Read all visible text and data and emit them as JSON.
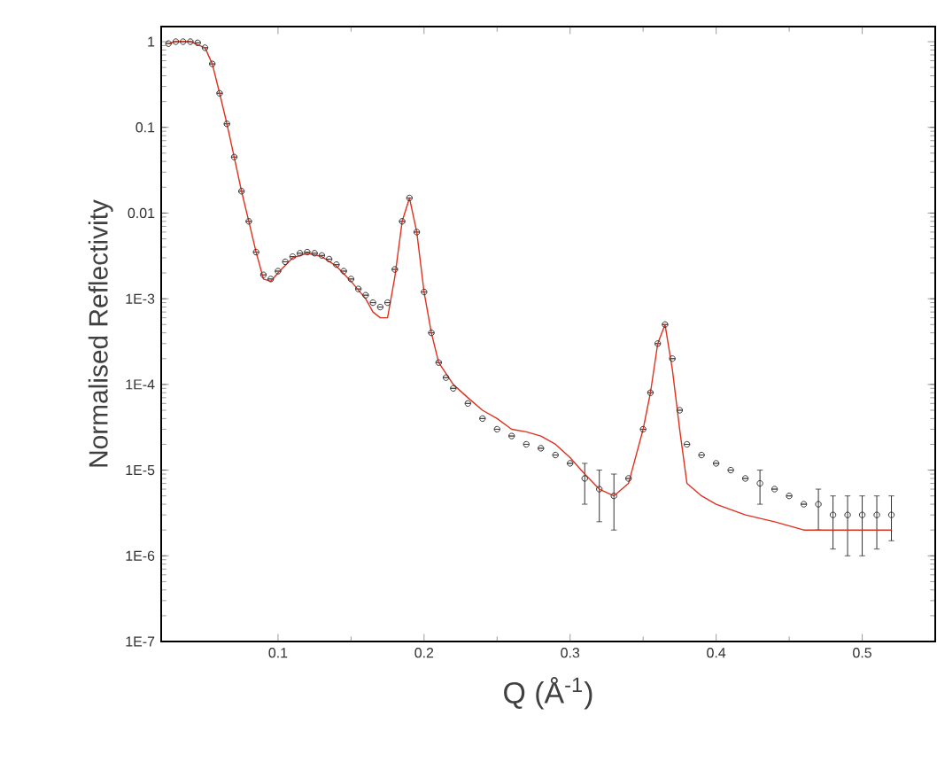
{
  "chart_data": {
    "type": "line",
    "xlabel": "Q (Å$^{-1}$)",
    "ylabel": "Normalised Reflectivity",
    "log": "y",
    "xlim": [
      0.02,
      0.55
    ],
    "xticks": [
      0.1,
      0.2,
      0.3,
      0.4,
      0.5
    ],
    "ylim": [
      1e-07,
      1.5
    ],
    "yticks": [
      {
        "value": 1e-07,
        "label": "1E-7"
      },
      {
        "value": 1e-06,
        "label": "1E-6"
      },
      {
        "value": 1e-05,
        "label": "1E-5"
      },
      {
        "value": 0.0001,
        "label": "1E-4"
      },
      {
        "value": 0.001,
        "label": "1E-3"
      },
      {
        "value": 0.01,
        "label": "0.01"
      },
      {
        "value": 0.1,
        "label": "0.1"
      },
      {
        "value": 1,
        "label": "1"
      }
    ],
    "grid": false,
    "series": [
      {
        "type": "scatter",
        "marker": "circle",
        "color": "#333333",
        "x": [
          0.025,
          0.03,
          0.035,
          0.04,
          0.045,
          0.05,
          0.055,
          0.06,
          0.065,
          0.07,
          0.075,
          0.08,
          0.085,
          0.09,
          0.095,
          0.1,
          0.105,
          0.11,
          0.115,
          0.12,
          0.125,
          0.13,
          0.135,
          0.14,
          0.145,
          0.15,
          0.155,
          0.16,
          0.165,
          0.17,
          0.175,
          0.18,
          0.185,
          0.19,
          0.195,
          0.2,
          0.205,
          0.21,
          0.215,
          0.22,
          0.23,
          0.24,
          0.25,
          0.26,
          0.27,
          0.28,
          0.29,
          0.3,
          0.31,
          0.32,
          0.33,
          0.34,
          0.35,
          0.355,
          0.36,
          0.365,
          0.37,
          0.375,
          0.38,
          0.39,
          0.4,
          0.41,
          0.42,
          0.43,
          0.44,
          0.45,
          0.46,
          0.47,
          0.48,
          0.49,
          0.5,
          0.51,
          0.52
        ],
        "values": [
          0.95,
          1.0,
          1.0,
          1.0,
          0.97,
          0.85,
          0.55,
          0.25,
          0.11,
          0.045,
          0.018,
          0.008,
          0.0035,
          0.0019,
          0.0017,
          0.0021,
          0.0027,
          0.0031,
          0.0034,
          0.0035,
          0.0034,
          0.0032,
          0.0029,
          0.0025,
          0.0021,
          0.0017,
          0.0013,
          0.0011,
          0.0009,
          0.0008,
          0.0009,
          0.0022,
          0.008,
          0.015,
          0.006,
          0.0012,
          0.0004,
          0.00018,
          0.00012,
          9e-05,
          6e-05,
          4e-05,
          3e-05,
          2.5e-05,
          2e-05,
          1.8e-05,
          1.5e-05,
          1.2e-05,
          8e-06,
          6e-06,
          5e-06,
          8e-06,
          3e-05,
          8e-05,
          0.0003,
          0.0005,
          0.0002,
          5e-05,
          2e-05,
          1.5e-05,
          1.2e-05,
          1e-05,
          8e-06,
          7e-06,
          6e-06,
          5e-06,
          4e-06,
          4e-06,
          3e-06,
          3e-06,
          3e-06,
          3e-06,
          3e-06
        ],
        "errors": [
          null,
          null,
          null,
          null,
          null,
          null,
          null,
          null,
          null,
          null,
          null,
          null,
          null,
          null,
          null,
          null,
          null,
          null,
          null,
          null,
          null,
          null,
          null,
          null,
          null,
          null,
          null,
          null,
          null,
          null,
          null,
          null,
          null,
          null,
          null,
          null,
          null,
          null,
          null,
          null,
          null,
          null,
          null,
          null,
          null,
          null,
          null,
          null,
          [
            4e-06,
            1.2e-05
          ],
          [
            2.5e-06,
            1e-05
          ],
          [
            2e-06,
            9e-06
          ],
          null,
          null,
          null,
          null,
          null,
          null,
          null,
          null,
          null,
          null,
          null,
          null,
          [
            4e-06,
            1e-05
          ],
          null,
          null,
          null,
          [
            2e-06,
            6e-06
          ],
          [
            1.2e-06,
            5e-06
          ],
          [
            1e-06,
            5e-06
          ],
          [
            1e-06,
            5e-06
          ],
          [
            1.2e-06,
            5e-06
          ],
          [
            1.5e-06,
            5e-06
          ]
        ]
      },
      {
        "color": "#e0301e",
        "x": [
          0.025,
          0.03,
          0.04,
          0.05,
          0.055,
          0.06,
          0.065,
          0.07,
          0.075,
          0.08,
          0.085,
          0.09,
          0.095,
          0.1,
          0.11,
          0.12,
          0.13,
          0.14,
          0.15,
          0.16,
          0.165,
          0.17,
          0.175,
          0.18,
          0.185,
          0.19,
          0.195,
          0.2,
          0.205,
          0.21,
          0.22,
          0.23,
          0.24,
          0.25,
          0.26,
          0.27,
          0.28,
          0.29,
          0.3,
          0.31,
          0.32,
          0.33,
          0.34,
          0.35,
          0.355,
          0.36,
          0.365,
          0.37,
          0.375,
          0.38,
          0.39,
          0.4,
          0.42,
          0.44,
          0.46,
          0.48,
          0.5,
          0.52
        ],
        "values": [
          0.95,
          1.0,
          1.0,
          0.85,
          0.55,
          0.25,
          0.11,
          0.045,
          0.018,
          0.008,
          0.0035,
          0.0017,
          0.0016,
          0.002,
          0.003,
          0.0034,
          0.0031,
          0.0024,
          0.0016,
          0.001,
          0.0007,
          0.0006,
          0.0006,
          0.0018,
          0.008,
          0.015,
          0.006,
          0.0012,
          0.0004,
          0.00018,
          0.0001,
          7e-05,
          5e-05,
          4e-05,
          3e-05,
          2.8e-05,
          2.5e-05,
          2e-05,
          1.4e-05,
          9e-06,
          6e-06,
          5e-06,
          7e-06,
          3e-05,
          8e-05,
          0.0003,
          0.0005,
          0.00015,
          3e-05,
          7e-06,
          5e-06,
          4e-06,
          3e-06,
          2.5e-06,
          2e-06,
          2e-06,
          2e-06,
          2e-06
        ]
      }
    ]
  }
}
